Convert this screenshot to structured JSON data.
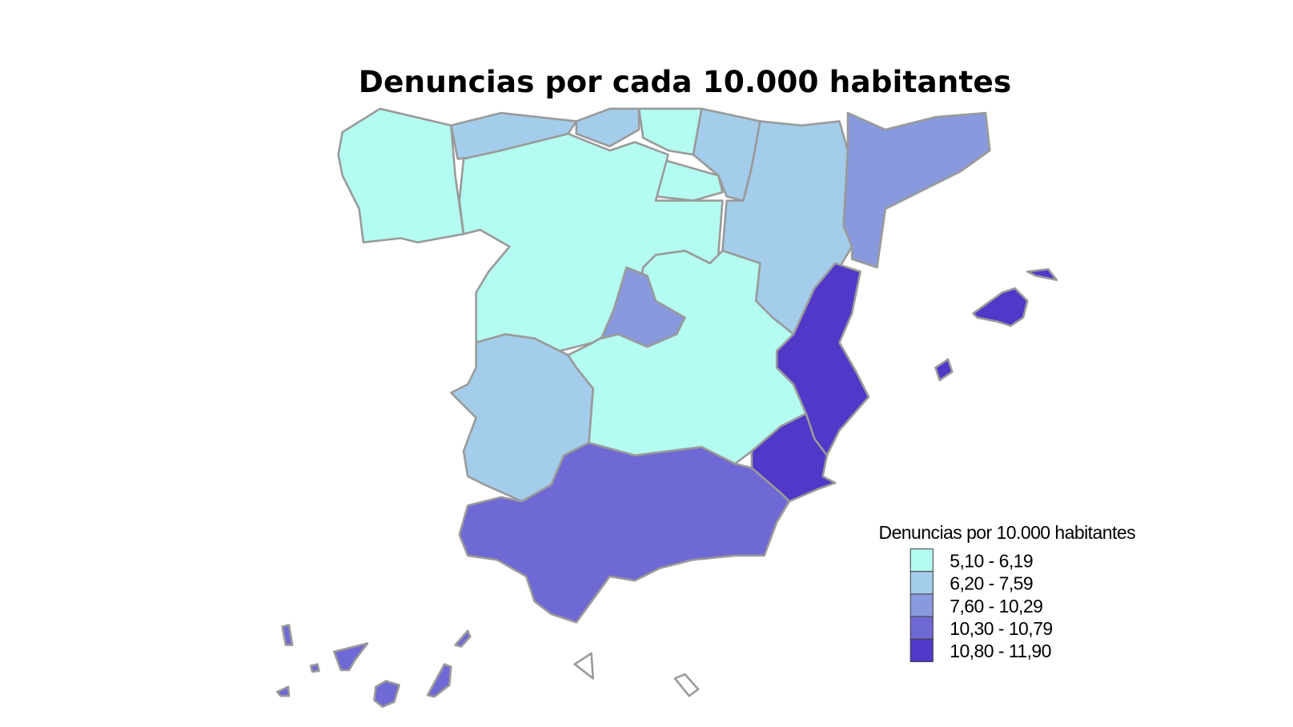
{
  "title": "Denuncias por cada 10.000 habitantes",
  "legend": {
    "title": "Denuncias por 10.000 habitantes",
    "items": [
      {
        "label": "5,10 - 6,19",
        "color": "#b4fbf1"
      },
      {
        "label": "6,20 - 7,59",
        "color": "#a3cdea"
      },
      {
        "label": "7,60 - 10,29",
        "color": "#8899dd"
      },
      {
        "label": "10,30 - 10,79",
        "color": "#6e69d4"
      },
      {
        "label": "10,80 - 11,90",
        "color": "#5038c8"
      }
    ]
  }
}
